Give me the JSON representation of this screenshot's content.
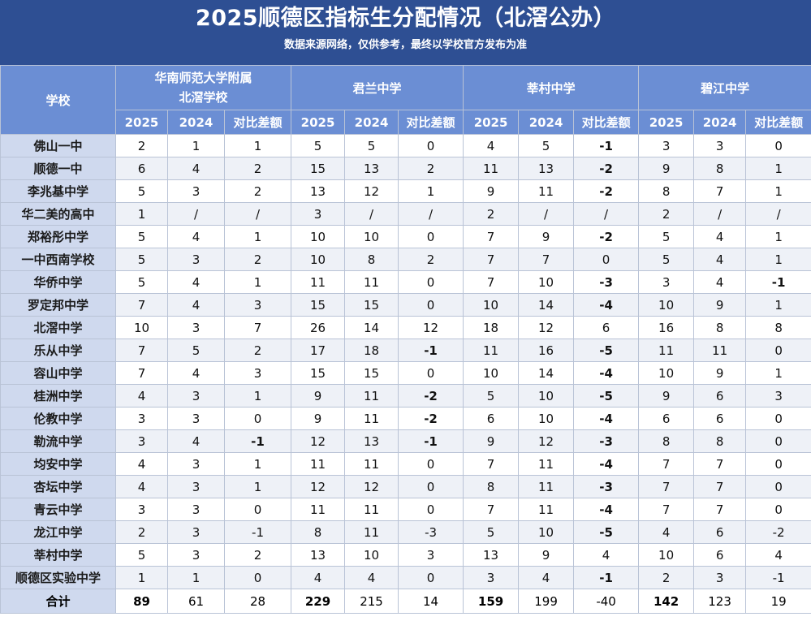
{
  "header": {
    "title": "2025顺德区指标生分配情况（北滘公办）",
    "subtitle": "数据来源网络，仅供参考，最终以学校官方发布为准"
  },
  "table": {
    "school_col_label": "学校",
    "groups": [
      "华南师范大学附属北滘学校",
      "君兰中学",
      "莘村中学",
      "碧江中学"
    ],
    "group_lines": [
      [
        "华南师范大学附属",
        "北滘学校"
      ],
      [
        "君兰中学"
      ],
      [
        "莘村中学"
      ],
      [
        "碧江中学"
      ]
    ],
    "sub_labels": [
      "2025",
      "2024",
      "对比差额"
    ],
    "rows": [
      {
        "school": "佛山一中",
        "values": [
          "2",
          "1",
          "1",
          "5",
          "5",
          "0",
          "4",
          "5",
          "-1",
          "3",
          "3",
          "0"
        ]
      },
      {
        "school": "顺德一中",
        "values": [
          "6",
          "4",
          "2",
          "15",
          "13",
          "2",
          "11",
          "13",
          "-2",
          "9",
          "8",
          "1"
        ]
      },
      {
        "school": "李兆基中学",
        "values": [
          "5",
          "3",
          "2",
          "13",
          "12",
          "1",
          "9",
          "11",
          "-2",
          "8",
          "7",
          "1"
        ]
      },
      {
        "school": "华二美的高中",
        "values": [
          "1",
          "/",
          "/",
          "3",
          "/",
          "/",
          "2",
          "/",
          "/",
          "2",
          "/",
          "/"
        ]
      },
      {
        "school": "郑裕彤中学",
        "values": [
          "5",
          "4",
          "1",
          "10",
          "10",
          "0",
          "7",
          "9",
          "-2",
          "5",
          "4",
          "1"
        ]
      },
      {
        "school": "一中西南学校",
        "values": [
          "5",
          "3",
          "2",
          "10",
          "8",
          "2",
          "7",
          "7",
          "0",
          "5",
          "4",
          "1"
        ]
      },
      {
        "school": "华侨中学",
        "values": [
          "5",
          "4",
          "1",
          "11",
          "11",
          "0",
          "7",
          "10",
          "-3",
          "3",
          "4",
          "-1"
        ]
      },
      {
        "school": "罗定邦中学",
        "values": [
          "7",
          "4",
          "3",
          "15",
          "15",
          "0",
          "10",
          "14",
          "-4",
          "10",
          "9",
          "1"
        ]
      },
      {
        "school": "北滘中学",
        "values": [
          "10",
          "3",
          "7",
          "26",
          "14",
          "12",
          "18",
          "12",
          "6",
          "16",
          "8",
          "8"
        ]
      },
      {
        "school": "乐从中学",
        "values": [
          "7",
          "5",
          "2",
          "17",
          "18",
          "-1",
          "11",
          "16",
          "-5",
          "11",
          "11",
          "0"
        ]
      },
      {
        "school": "容山中学",
        "values": [
          "7",
          "4",
          "3",
          "15",
          "15",
          "0",
          "10",
          "14",
          "-4",
          "10",
          "9",
          "1"
        ]
      },
      {
        "school": "桂洲中学",
        "values": [
          "4",
          "3",
          "1",
          "9",
          "11",
          "-2",
          "5",
          "10",
          "-5",
          "9",
          "6",
          "3"
        ]
      },
      {
        "school": "伦教中学",
        "values": [
          "3",
          "3",
          "0",
          "9",
          "11",
          "-2",
          "6",
          "10",
          "-4",
          "6",
          "6",
          "0"
        ]
      },
      {
        "school": "勒流中学",
        "values": [
          "3",
          "4",
          "-1",
          "12",
          "13",
          "-1",
          "9",
          "12",
          "-3",
          "8",
          "8",
          "0"
        ]
      },
      {
        "school": "均安中学",
        "values": [
          "4",
          "3",
          "1",
          "11",
          "11",
          "0",
          "7",
          "11",
          "-4",
          "7",
          "7",
          "0"
        ]
      },
      {
        "school": "杏坛中学",
        "values": [
          "4",
          "3",
          "1",
          "12",
          "12",
          "0",
          "8",
          "11",
          "-3",
          "7",
          "7",
          "0"
        ]
      },
      {
        "school": "青云中学",
        "values": [
          "3",
          "3",
          "0",
          "11",
          "11",
          "0",
          "7",
          "11",
          "-4",
          "7",
          "7",
          "0"
        ]
      },
      {
        "school": "龙江中学",
        "values": [
          "2",
          "3",
          "-1",
          "8",
          "11",
          "-3",
          "5",
          "10",
          "-5",
          "4",
          "6",
          "-2"
        ]
      },
      {
        "school": "莘村中学",
        "values": [
          "5",
          "3",
          "2",
          "13",
          "10",
          "3",
          "13",
          "9",
          "4",
          "10",
          "6",
          "4"
        ]
      },
      {
        "school": "顺德区实验中学",
        "values": [
          "1",
          "1",
          "0",
          "4",
          "4",
          "0",
          "3",
          "4",
          "-1",
          "2",
          "3",
          "-1"
        ]
      }
    ],
    "total": {
      "label": "合计",
      "values": [
        "89",
        "61",
        "28",
        "229",
        "215",
        "14",
        "159",
        "199",
        "-40",
        "142",
        "123",
        "19"
      ]
    },
    "bold_negative_cells": [
      [
        0,
        8
      ],
      [
        1,
        8
      ],
      [
        2,
        8
      ],
      [
        4,
        8
      ],
      [
        6,
        8
      ],
      [
        6,
        11
      ],
      [
        7,
        8
      ],
      [
        9,
        5
      ],
      [
        9,
        8
      ],
      [
        10,
        8
      ],
      [
        11,
        5
      ],
      [
        11,
        8
      ],
      [
        12,
        5
      ],
      [
        12,
        8
      ],
      [
        13,
        2
      ],
      [
        13,
        5
      ],
      [
        13,
        8
      ],
      [
        14,
        8
      ],
      [
        15,
        8
      ],
      [
        16,
        8
      ],
      [
        17,
        8
      ],
      [
        19,
        8
      ]
    ],
    "bold_total_cells": [
      0,
      3,
      6,
      9
    ]
  }
}
